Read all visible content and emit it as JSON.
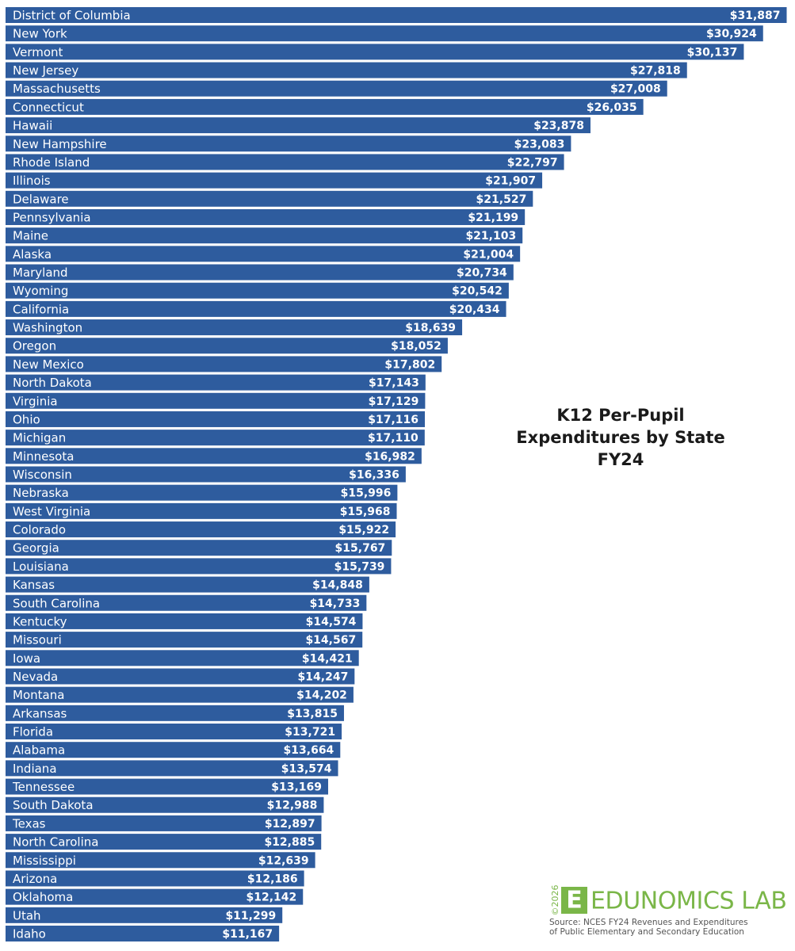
{
  "chart_data": {
    "type": "bar",
    "orientation": "horizontal",
    "title": "K12 Per-Pupil Expenditures by State FY24",
    "categories": [
      "District of Columbia",
      "New York",
      "Vermont",
      "New Jersey",
      "Massachusetts",
      "Connecticut",
      "Hawaii",
      "New Hampshire",
      "Rhode Island",
      "Illinois",
      "Delaware",
      "Pennsylvania",
      "Maine",
      "Alaska",
      "Maryland",
      "Wyoming",
      "California",
      "Washington",
      "Oregon",
      "New Mexico",
      "North Dakota",
      "Virginia",
      "Ohio",
      "Michigan",
      "Minnesota",
      "Wisconsin",
      "Nebraska",
      "West Virginia",
      "Colorado",
      "Georgia",
      "Louisiana",
      "Kansas",
      "South Carolina",
      "Kentucky",
      "Missouri",
      "Iowa",
      "Nevada",
      "Montana",
      "Arkansas",
      "Florida",
      "Alabama",
      "Indiana",
      "Tennessee",
      "South Dakota",
      "Texas",
      "North Carolina",
      "Mississippi",
      "Arizona",
      "Oklahoma",
      "Utah",
      "Idaho"
    ],
    "values": [
      31887,
      30924,
      30137,
      27818,
      27008,
      26035,
      23878,
      23083,
      22797,
      21907,
      21527,
      21199,
      21103,
      21004,
      20734,
      20542,
      20434,
      18639,
      18052,
      17802,
      17143,
      17129,
      17116,
      17110,
      16982,
      16336,
      15996,
      15968,
      15922,
      15767,
      15739,
      14848,
      14733,
      14574,
      14567,
      14421,
      14247,
      14202,
      13815,
      13721,
      13664,
      13574,
      13169,
      12988,
      12897,
      12885,
      12639,
      12186,
      12142,
      11299,
      11167
    ],
    "value_labels": [
      "$31,887",
      "$30,924",
      "$30,137",
      "$27,818",
      "$27,008",
      "$26,035",
      "$23,878",
      "$23,083",
      "$22,797",
      "$21,907",
      "$21,527",
      "$21,199",
      "$21,103",
      "$21,004",
      "$20,734",
      "$20,542",
      "$20,434",
      "$18,639",
      "$18,052",
      "$17,802",
      "$17,143",
      "$17,129",
      "$17,116",
      "$17,110",
      "$16,982",
      "$16,336",
      "$15,996",
      "$15,968",
      "$15,922",
      "$15,767",
      "$15,739",
      "$14,848",
      "$14,733",
      "$14,574",
      "$14,567",
      "$14,421",
      "$14,247",
      "$14,202",
      "$13,815",
      "$13,721",
      "$13,664",
      "$13,574",
      "$13,169",
      "$12,988",
      "$12,897",
      "$12,885",
      "$12,639",
      "$12,186",
      "$12,142",
      "$11,299",
      "$11,167"
    ],
    "color": "#2e5c9e",
    "xlim": [
      0,
      32000
    ],
    "logo": {
      "copyright": "©2026",
      "icon": "E",
      "name": "EDUNOMICS LAB"
    },
    "source": [
      "Source: NCES FY24 Revenues and Expenditures",
      "of Public Elementary and Secondary Education"
    ]
  }
}
